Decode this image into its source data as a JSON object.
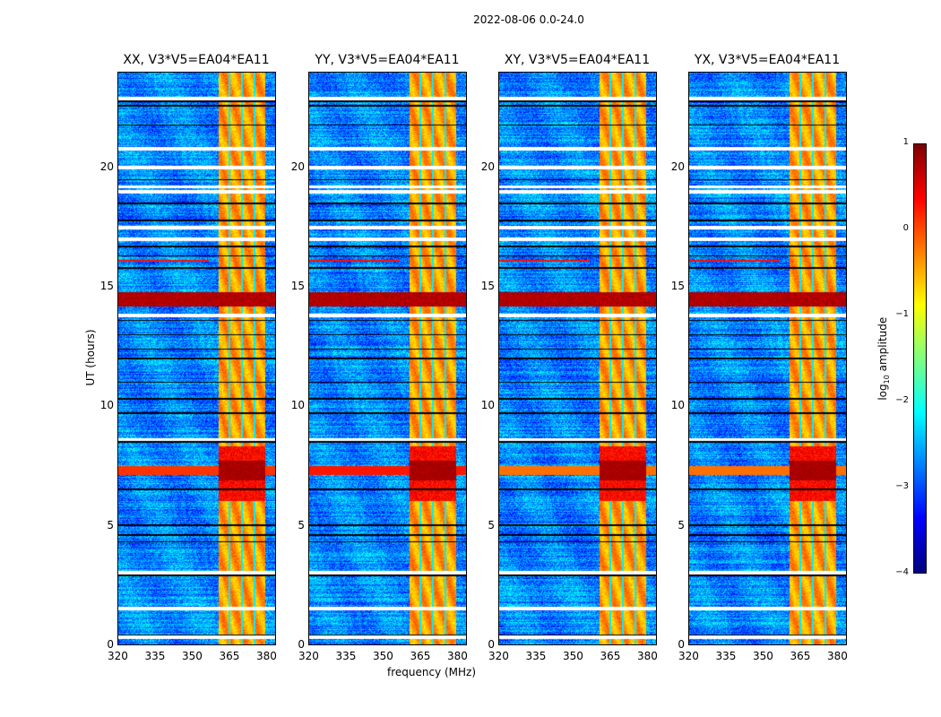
{
  "chart_data": {
    "type": "heatmap",
    "title": "2022-08-06 0.0-24.0",
    "xlabel": "frequency (MHz)",
    "ylabel": "UT (hours)",
    "xlim": [
      320,
      384
    ],
    "ylim": [
      0,
      24
    ],
    "xticks": [
      "320",
      "335",
      "350",
      "365",
      "380"
    ],
    "xtick_values": [
      320,
      335,
      350,
      365,
      380
    ],
    "yticks": [
      "0",
      "5",
      "10",
      "15",
      "20"
    ],
    "ytick_values": [
      0,
      5,
      10,
      15,
      20
    ],
    "panels": [
      {
        "title": "XX, V3*V5=EA04*EA11",
        "rfi_7h_strength": 0.75
      },
      {
        "title": "YY, V3*V5=EA04*EA11",
        "rfi_7h_strength": 0.85
      },
      {
        "title": "XY, V3*V5=EA04*EA11",
        "rfi_7h_strength": 0.55
      },
      {
        "title": "YX, V3*V5=EA04*EA11",
        "rfi_7h_strength": 0.55
      }
    ],
    "background_level": -2.7,
    "band_mhz": [
      361,
      380
    ],
    "band_level": -0.4,
    "band_gaps_mhz": [
      365.5,
      370.5,
      375.5
    ],
    "strong_rfi_hours": [
      [
        14.2,
        14.8
      ],
      [
        6.9,
        7.7
      ]
    ],
    "flagged_white_hours": [
      0.3,
      1.5,
      3.0,
      8.6,
      13.8,
      17.0,
      17.5,
      19.0,
      19.2,
      20.0,
      20.8,
      22.9
    ],
    "flagged_black_hours": [
      0.4,
      2.9,
      4.3,
      4.6,
      5.0,
      6.5,
      8.5,
      9.7,
      10.3,
      11.0,
      12.0,
      12.4,
      13.0,
      13.6,
      15.8,
      16.3,
      16.7,
      17.8,
      18.5,
      19.5,
      21.8,
      22.6,
      22.8
    ],
    "colorbar": {
      "label": "log10 amplitude",
      "label_base": "log",
      "label_sub": "10",
      "label_rest": " amplitude",
      "range": [
        -4,
        1
      ],
      "ticks": [
        "1",
        "0",
        "−1",
        "−2",
        "−3",
        "−4"
      ],
      "tick_values": [
        1,
        0,
        -1,
        -2,
        -3,
        -4
      ],
      "colormap": "jet"
    }
  }
}
